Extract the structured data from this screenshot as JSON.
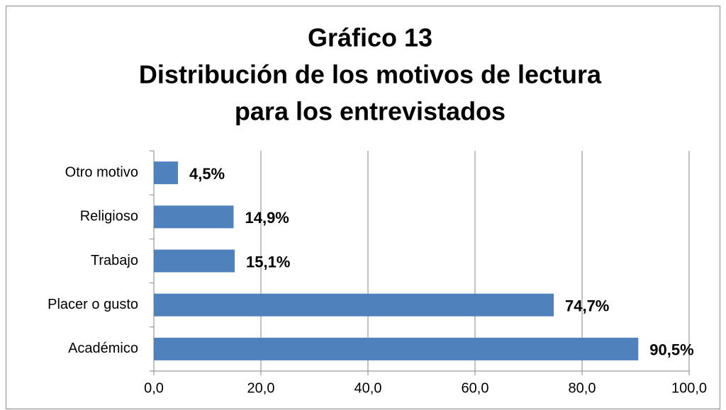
{
  "chart_data": {
    "type": "barh",
    "title": [
      "Gráfico 13",
      "Distribución de los motivos de lectura",
      "para los entrevistados"
    ],
    "categories": [
      "Académico",
      "Placer o gusto",
      "Trabajo",
      "Religioso",
      "Otro motivo"
    ],
    "values": [
      90.5,
      74.7,
      15.1,
      14.9,
      4.5
    ],
    "value_labels": [
      "90,5%",
      "74,7%",
      "15,1%",
      "14,9%",
      "4,5%"
    ],
    "color": "#4f81bd",
    "xlim": [
      0,
      100
    ],
    "xticks": [
      {
        "value": 0,
        "label": "0,0"
      },
      {
        "value": 20,
        "label": "20,0"
      },
      {
        "value": 40,
        "label": "40,0"
      },
      {
        "value": 60,
        "label": "60,0"
      },
      {
        "value": 80,
        "label": "80,0"
      },
      {
        "value": 100,
        "label": "100,0"
      }
    ],
    "grid": true
  }
}
